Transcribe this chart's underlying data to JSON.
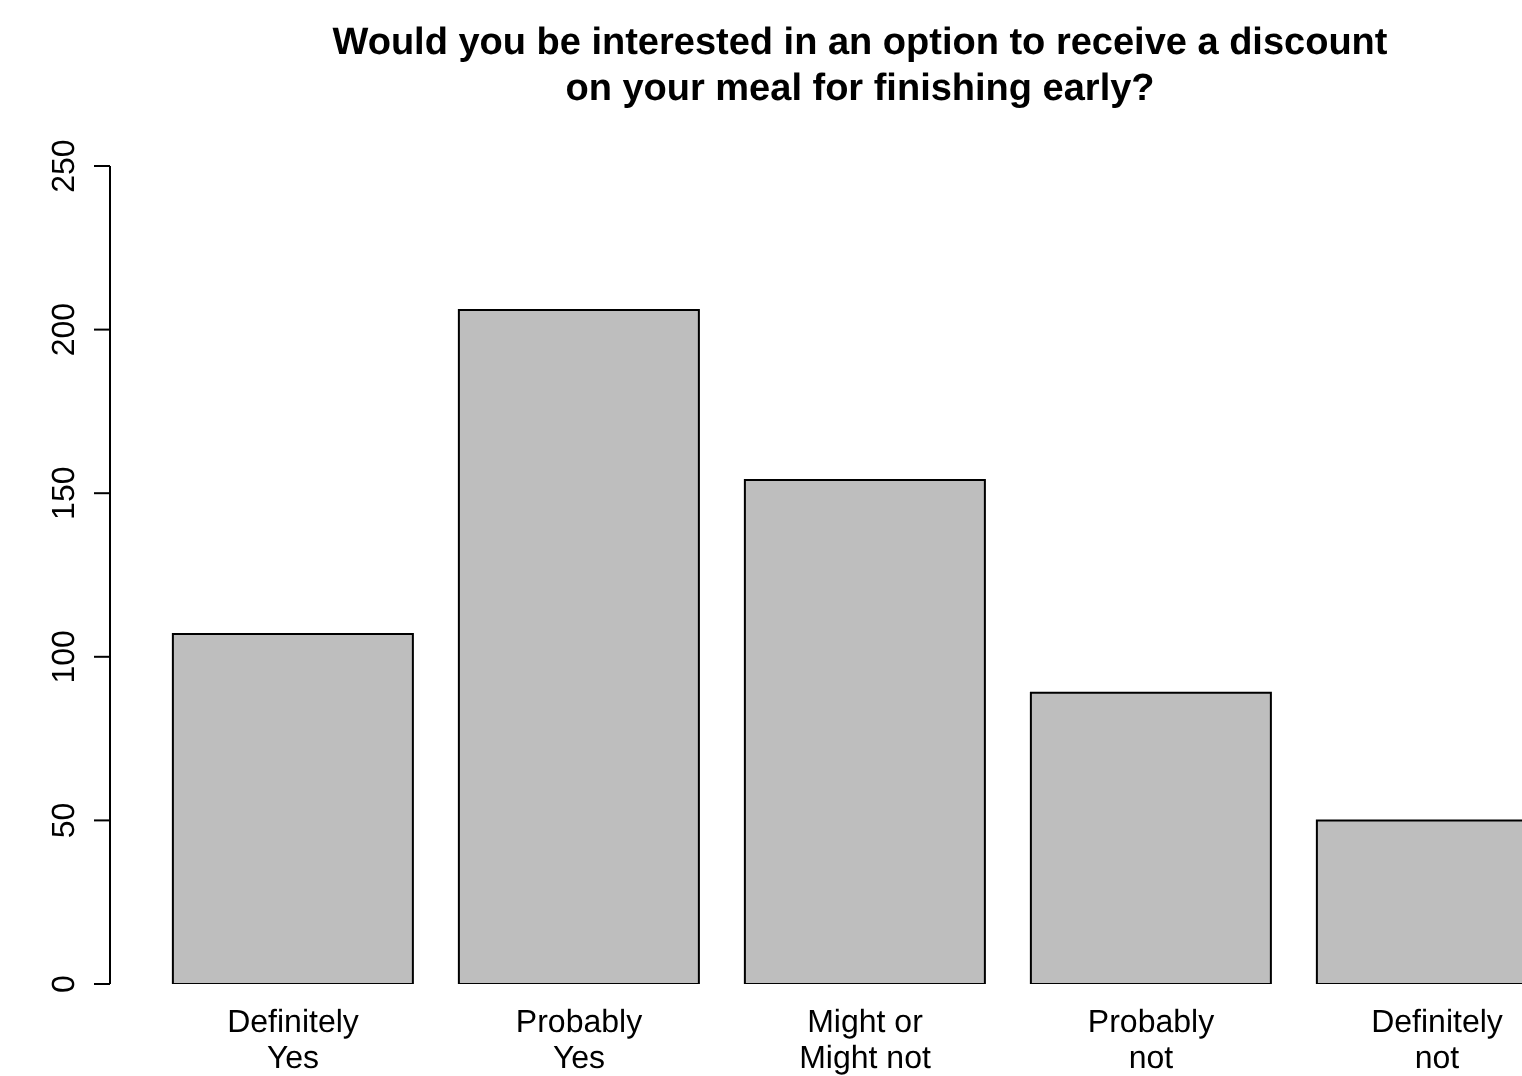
{
  "chart_data": {
    "type": "bar",
    "title": "Would you be interested in an option to receive a discount\non your meal for finishing early?",
    "categories": [
      "Definitely\nYes",
      "Probably\nYes",
      "Might or\nMight not",
      "Probably\nnot",
      "Definitely\nnot"
    ],
    "values": [
      107,
      206,
      154,
      89,
      50
    ],
    "color": "#bebebe",
    "ylim": [
      0,
      250
    ],
    "yticks": [
      0,
      50,
      100,
      150,
      200,
      250
    ],
    "grid": false
  }
}
